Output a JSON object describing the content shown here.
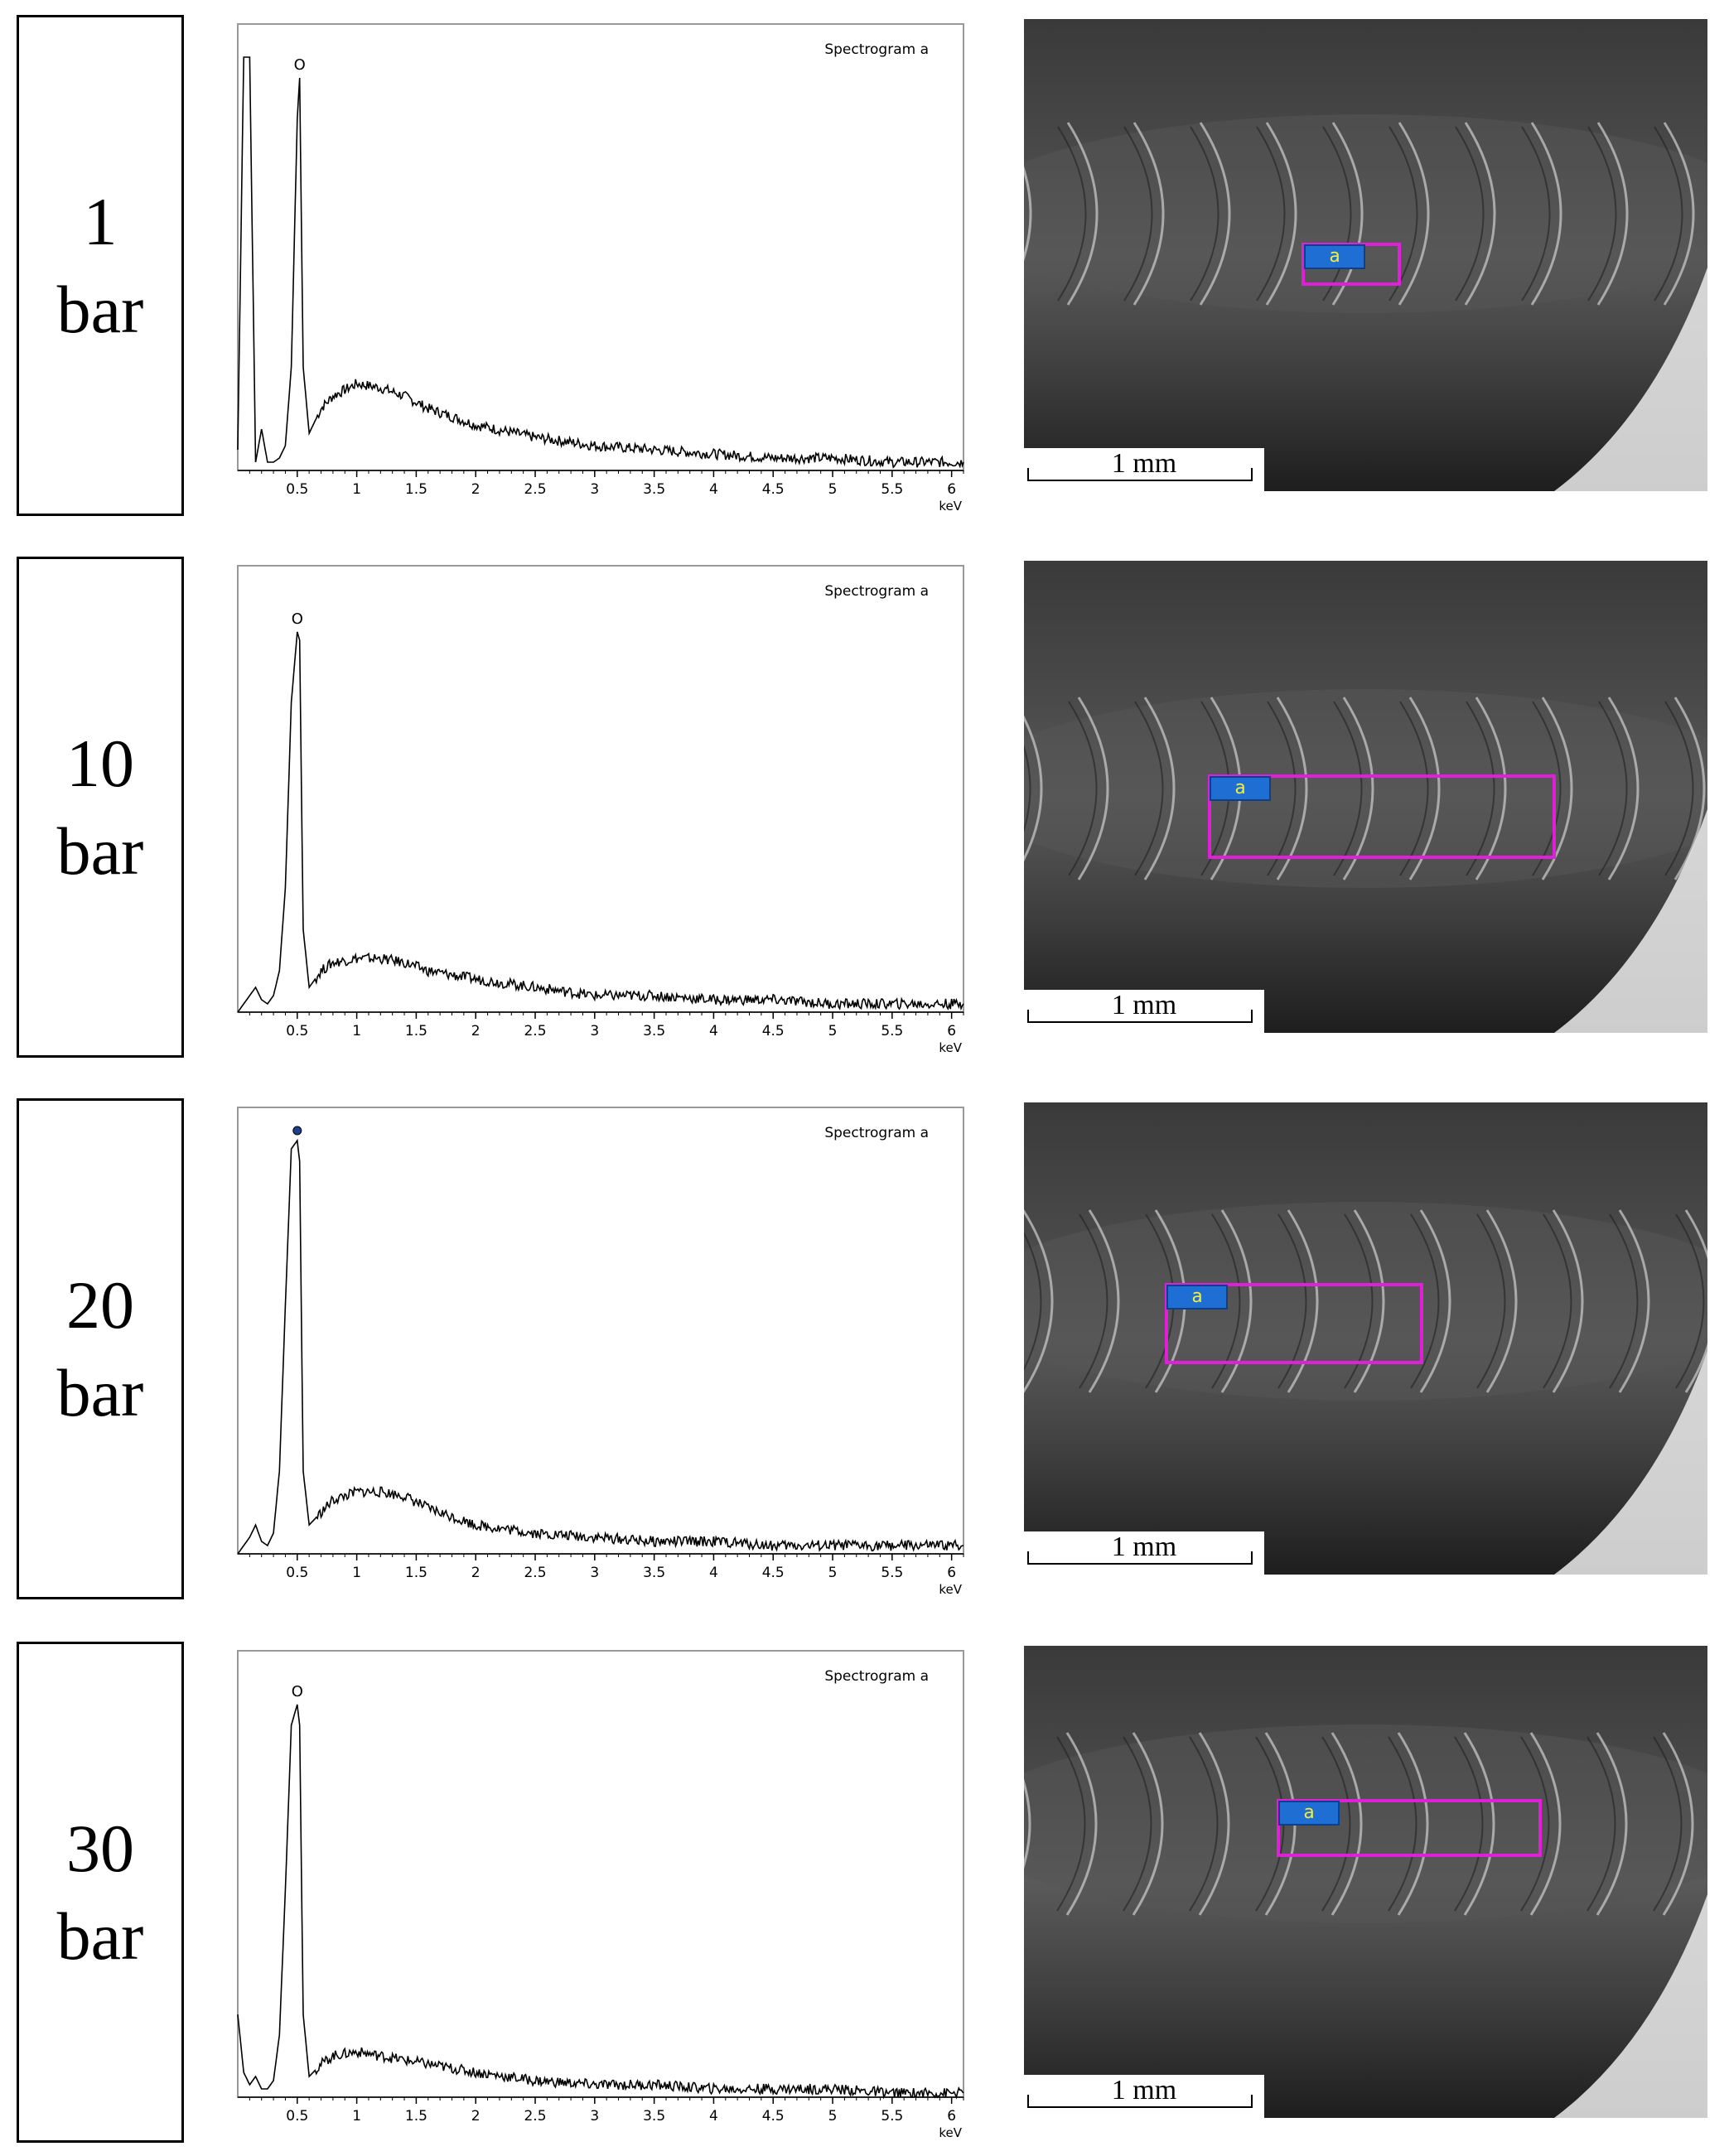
{
  "rows": [
    {
      "label": [
        "1",
        "bar"
      ],
      "spectrum_title": "Spectrogram a",
      "peak_label": "O",
      "scale_text": "1 mm",
      "tag_text": "a"
    },
    {
      "label": [
        "10",
        "bar"
      ],
      "spectrum_title": "Spectrogram a",
      "peak_label": "O",
      "scale_text": "1 mm",
      "tag_text": "a"
    },
    {
      "label": [
        "20",
        "bar"
      ],
      "spectrum_title": "Spectrogram a",
      "peak_label": "",
      "scale_text": "1 mm",
      "tag_text": "a"
    },
    {
      "label": [
        "30",
        "bar"
      ],
      "spectrum_title": "Spectrogram a",
      "peak_label": "O",
      "scale_text": "1 mm",
      "tag_text": "a"
    }
  ],
  "chart_data": [
    {
      "type": "line",
      "title": "Spectrogram a",
      "xlabel": "keV",
      "ylabel": "",
      "xlim": [
        0,
        6.1
      ],
      "x_ticks": [
        "0.5",
        "1",
        "1.5",
        "2",
        "2.5",
        "3",
        "3.5",
        "4",
        "4.5",
        "5",
        "5.5",
        "6"
      ],
      "x": [
        0.0,
        0.05,
        0.1,
        0.15,
        0.2,
        0.25,
        0.3,
        0.35,
        0.4,
        0.45,
        0.5,
        0.52,
        0.55,
        0.6,
        0.7,
        0.8,
        1.0,
        1.2,
        1.4,
        1.6,
        1.8,
        2.0,
        2.5,
        3.0,
        3.5,
        4.0,
        4.5,
        5.0,
        5.5,
        6.0,
        6.1
      ],
      "values": [
        0.05,
        1.0,
        1.0,
        0.02,
        0.1,
        0.02,
        0.02,
        0.03,
        0.06,
        0.25,
        0.85,
        0.95,
        0.25,
        0.09,
        0.15,
        0.18,
        0.21,
        0.2,
        0.18,
        0.15,
        0.13,
        0.11,
        0.08,
        0.06,
        0.05,
        0.04,
        0.03,
        0.03,
        0.02,
        0.02,
        0.02
      ]
    },
    {
      "type": "line",
      "title": "Spectrogram a",
      "xlabel": "keV",
      "ylabel": "",
      "xlim": [
        0,
        6.1
      ],
      "x_ticks": [
        "0.5",
        "1",
        "1.5",
        "2",
        "2.5",
        "3",
        "3.5",
        "4",
        "4.5",
        "5",
        "5.5",
        "6"
      ],
      "x": [
        0.0,
        0.05,
        0.1,
        0.15,
        0.2,
        0.25,
        0.3,
        0.35,
        0.4,
        0.45,
        0.5,
        0.52,
        0.55,
        0.6,
        0.7,
        0.8,
        1.0,
        1.2,
        1.4,
        1.6,
        1.8,
        2.0,
        2.5,
        3.0,
        3.5,
        4.0,
        4.5,
        5.0,
        5.5,
        6.0,
        6.1
      ],
      "values": [
        0.0,
        0.02,
        0.04,
        0.06,
        0.03,
        0.02,
        0.04,
        0.1,
        0.3,
        0.75,
        0.92,
        0.9,
        0.2,
        0.06,
        0.1,
        0.12,
        0.13,
        0.13,
        0.12,
        0.1,
        0.09,
        0.08,
        0.06,
        0.04,
        0.04,
        0.03,
        0.03,
        0.02,
        0.02,
        0.02,
        0.02
      ]
    },
    {
      "type": "line",
      "title": "Spectrogram a",
      "xlabel": "keV",
      "ylabel": "",
      "xlim": [
        0,
        6.1
      ],
      "x_ticks": [
        "0.5",
        "1",
        "1.5",
        "2",
        "2.5",
        "3",
        "3.5",
        "4",
        "4.5",
        "5",
        "5.5",
        "6"
      ],
      "x": [
        0.0,
        0.05,
        0.1,
        0.15,
        0.2,
        0.25,
        0.3,
        0.35,
        0.4,
        0.45,
        0.5,
        0.52,
        0.55,
        0.6,
        0.7,
        0.8,
        1.0,
        1.2,
        1.4,
        1.6,
        1.8,
        2.0,
        2.5,
        3.0,
        3.5,
        4.0,
        4.5,
        5.0,
        5.5,
        6.0,
        6.1
      ],
      "values": [
        0.0,
        0.02,
        0.04,
        0.07,
        0.03,
        0.02,
        0.05,
        0.2,
        0.6,
        0.98,
        1.0,
        0.95,
        0.2,
        0.07,
        0.1,
        0.13,
        0.15,
        0.15,
        0.14,
        0.11,
        0.09,
        0.07,
        0.05,
        0.04,
        0.03,
        0.03,
        0.02,
        0.02,
        0.02,
        0.02,
        0.02
      ]
    },
    {
      "type": "line",
      "title": "Spectrogram a",
      "xlabel": "keV",
      "ylabel": "",
      "xlim": [
        0,
        6.1
      ],
      "x_ticks": [
        "0.5",
        "1",
        "1.5",
        "2",
        "2.5",
        "3",
        "3.5",
        "4",
        "4.5",
        "5",
        "5.5",
        "6"
      ],
      "x": [
        0.0,
        0.05,
        0.1,
        0.15,
        0.2,
        0.25,
        0.3,
        0.35,
        0.4,
        0.45,
        0.5,
        0.52,
        0.55,
        0.6,
        0.7,
        0.8,
        1.0,
        1.2,
        1.4,
        1.6,
        1.8,
        2.0,
        2.5,
        3.0,
        3.5,
        4.0,
        4.5,
        5.0,
        5.5,
        6.0,
        6.1
      ],
      "values": [
        0.2,
        0.06,
        0.03,
        0.05,
        0.02,
        0.02,
        0.04,
        0.15,
        0.5,
        0.9,
        0.95,
        0.9,
        0.2,
        0.05,
        0.08,
        0.1,
        0.11,
        0.1,
        0.09,
        0.08,
        0.07,
        0.06,
        0.04,
        0.03,
        0.03,
        0.02,
        0.02,
        0.02,
        0.01,
        0.01,
        0.01
      ]
    }
  ]
}
